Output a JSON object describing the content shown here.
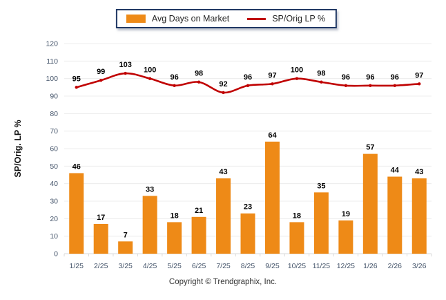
{
  "legend": {
    "bar_label": "Avg Days on Market",
    "line_label": "SP/Orig LP %"
  },
  "footer": {
    "copyright": "Copyright © Trendgraphix, Inc."
  },
  "colors": {
    "bar": "#EE8A17",
    "line": "#C00000",
    "legend_border": "#203864",
    "grid": "#ECECEC",
    "axis_line": "#D9D9D9",
    "axis_text": "#44546A",
    "data_label": "#000000",
    "axis_title": "#111111"
  },
  "chart_data": {
    "type": "combo",
    "categories": [
      "1/25",
      "2/25",
      "3/25",
      "4/25",
      "5/25",
      "6/25",
      "7/25",
      "8/25",
      "9/25",
      "10/25",
      "11/25",
      "12/25",
      "1/26",
      "2/26",
      "3/26"
    ],
    "series": [
      {
        "name": "Avg Days on Market",
        "type": "bar",
        "values": [
          46,
          17,
          7,
          33,
          18,
          21,
          43,
          23,
          64,
          18,
          35,
          19,
          57,
          44,
          43
        ]
      },
      {
        "name": "SP/Orig LP %",
        "type": "line",
        "values": [
          95,
          99,
          103,
          100,
          96,
          98,
          92,
          96,
          97,
          100,
          98,
          96,
          96,
          96,
          97
        ]
      }
    ],
    "title": "",
    "xlabel": "",
    "ylabel": "SP/Orig. LP %",
    "ylim": [
      0,
      120
    ],
    "ytick_step": 10,
    "grid": "horizontal",
    "legend_position": "top-center",
    "data_labels": true
  }
}
